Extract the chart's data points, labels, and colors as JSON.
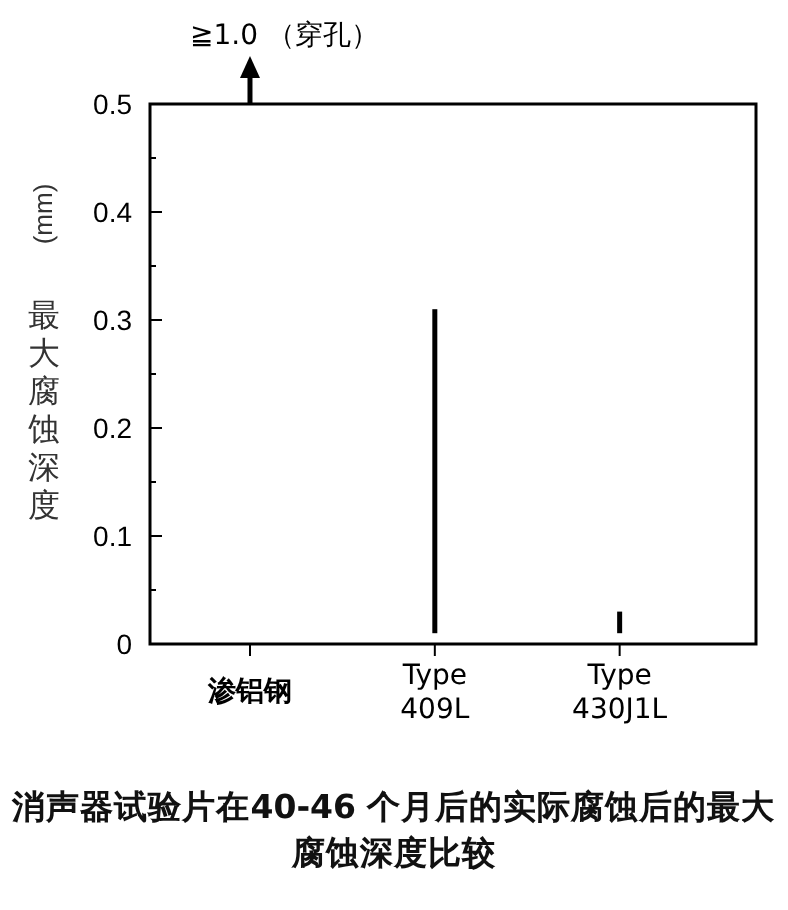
{
  "chart_data": {
    "type": "bar",
    "title": "消声器试验片在40-46 个月后的实际腐蚀后的最大腐蚀深度比较",
    "ylabel": "(mm)最大腐蚀深度",
    "categories": [
      "渗铝钢",
      "Type 409L",
      "Type 430J1L"
    ],
    "values": [
      null,
      0.3,
      0.02
    ],
    "base": [
      null,
      0.01,
      0.01
    ],
    "color": "#000000",
    "ylim": [
      0,
      0.5
    ],
    "yticks": [
      0,
      {
        "value": 0.05,
        "label": null
      },
      0.1,
      {
        "value": 0.15,
        "label": null
      },
      0.2,
      {
        "value": 0.25,
        "label": null
      },
      0.3,
      {
        "value": 0.35,
        "label": null
      },
      0.4,
      {
        "value": 0.45,
        "label": null
      },
      0.5
    ],
    "annotations": [
      "≧1.0 （穿孔）"
    ],
    "grid": false
  }
}
